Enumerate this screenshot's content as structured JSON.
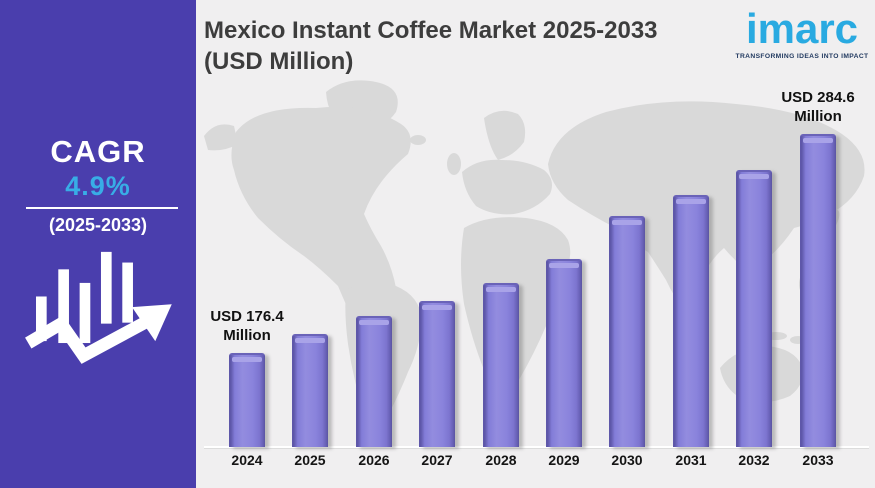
{
  "header": {
    "title_lines": [
      "Mexico Instant Coffee Market 2025-2033",
      "(USD Million)"
    ]
  },
  "logo": {
    "brand": "imarc",
    "tagline": "TRANSFORMING IDEAS INTO IMPACT",
    "brand_color": "#29aae1",
    "tagline_color": "#223a60"
  },
  "sidebar": {
    "cagr_label": "CAGR",
    "cagr_value": "4.9%",
    "period": "(2025-2033)",
    "bg_color": "#4a3ead",
    "value_color": "#38ade6"
  },
  "chart_data": {
    "type": "bar",
    "title": "Mexico Instant Coffee Market 2025-2033 (USD Million)",
    "unit": "USD Million",
    "categories": [
      "2024",
      "2025",
      "2026",
      "2027",
      "2028",
      "2029",
      "2030",
      "2031",
      "2032",
      "2033"
    ],
    "values": [
      176.4,
      186.0,
      194.5,
      202.0,
      211.0,
      223.0,
      244.0,
      254.5,
      267.0,
      284.6
    ],
    "labeled_values": {
      "2024": 176.4,
      "2033": 284.6
    },
    "values_note": "Only 2024 and 2033 values are printed on the chart; intermediate values estimated from bar heights",
    "ylim": [
      130,
      300
    ],
    "bar_color": "#8a83dc",
    "grid": false,
    "legend": false,
    "annotations": [
      {
        "index": 0,
        "lines": [
          "USD 176.4",
          "Million"
        ]
      },
      {
        "index": 9,
        "lines": [
          "USD 284.6",
          "Million"
        ]
      }
    ]
  }
}
